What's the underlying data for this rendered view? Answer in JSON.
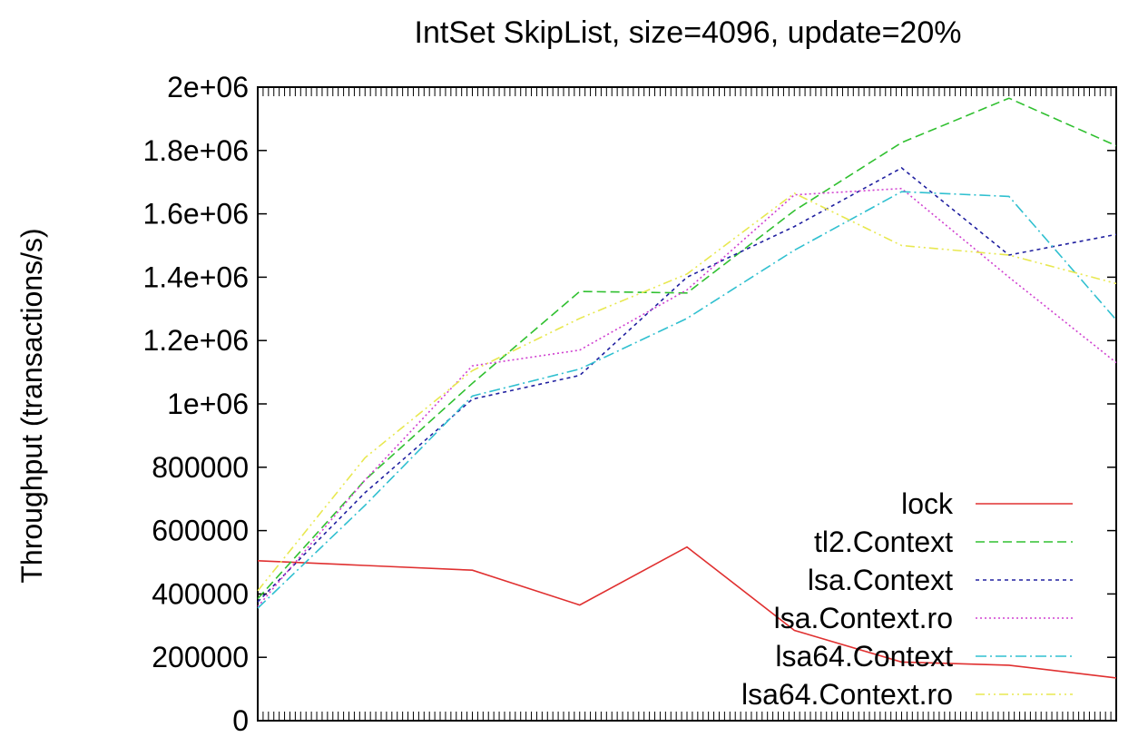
{
  "chart_data": {
    "type": "line",
    "title": "IntSet SkipList, size=4096, update=20%",
    "xlabel": "",
    "ylabel": "Throughput (transactions/s)",
    "x": [
      1,
      2,
      3,
      4,
      5,
      6,
      7,
      8,
      9
    ],
    "xlim": [
      1,
      9
    ],
    "ylim": [
      0,
      2000000
    ],
    "yticks": [
      {
        "value": 0,
        "label": "0"
      },
      {
        "value": 200000,
        "label": "200000"
      },
      {
        "value": 400000,
        "label": "400000"
      },
      {
        "value": 600000,
        "label": "600000"
      },
      {
        "value": 800000,
        "label": "800000"
      },
      {
        "value": 1000000,
        "label": "1e+06"
      },
      {
        "value": 1200000,
        "label": "1.2e+06"
      },
      {
        "value": 1400000,
        "label": "1.4e+06"
      },
      {
        "value": 1600000,
        "label": "1.6e+06"
      },
      {
        "value": 1800000,
        "label": "1.8e+06"
      },
      {
        "value": 2000000,
        "label": "2e+06"
      }
    ],
    "grid": false,
    "legend_position": "bottom-right",
    "series": [
      {
        "name": "lock",
        "color": "#e03030",
        "dash": "solid",
        "values": [
          505000,
          490000,
          475000,
          365000,
          548000,
          285000,
          185000,
          175000,
          135000
        ]
      },
      {
        "name": "tl2.Context",
        "color": "#30c030",
        "dash": "long-dash",
        "values": [
          385000,
          760000,
          1065000,
          1355000,
          1350000,
          1610000,
          1825000,
          1965000,
          1815000
        ]
      },
      {
        "name": "lsa.Context",
        "color": "#2020a0",
        "dash": "short-dash",
        "values": [
          375000,
          720000,
          1015000,
          1090000,
          1400000,
          1560000,
          1745000,
          1470000,
          1535000
        ]
      },
      {
        "name": "lsa.Context.ro",
        "color": "#d040d0",
        "dash": "dotted",
        "values": [
          360000,
          760000,
          1120000,
          1170000,
          1360000,
          1660000,
          1680000,
          1400000,
          1130000
        ]
      },
      {
        "name": "lsa64.Context",
        "color": "#30c0d0",
        "dash": "dash-dot",
        "values": [
          355000,
          680000,
          1025000,
          1110000,
          1270000,
          1485000,
          1670000,
          1655000,
          1265000
        ]
      },
      {
        "name": "lsa64.Context.ro",
        "color": "#e8e850",
        "dash": "dash-dot-dot",
        "values": [
          410000,
          830000,
          1105000,
          1270000,
          1410000,
          1665000,
          1500000,
          1470000,
          1380000
        ]
      }
    ]
  }
}
